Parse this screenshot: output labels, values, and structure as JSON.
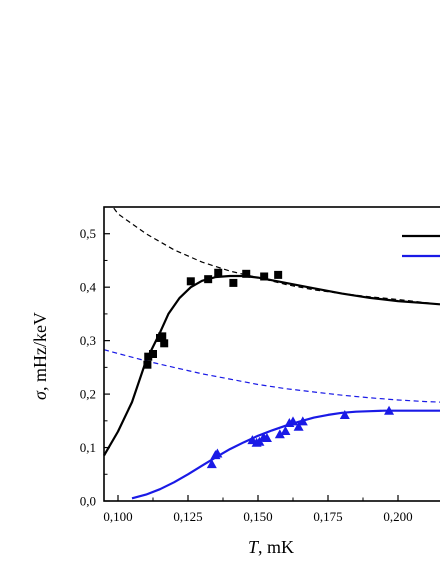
{
  "chart_data": {
    "type": "scatter",
    "xlabel_var": "T",
    "xlabel_unit": ", mK",
    "ylabel_var": "σ",
    "ylabel_unit": ", mHz/keV",
    "xlim": [
      0.095,
      0.215
    ],
    "ylim": [
      0.0,
      0.55
    ],
    "x_ticks": [
      {
        "value": 0.1,
        "label": "0,100"
      },
      {
        "value": 0.125,
        "label": "0,125"
      },
      {
        "value": 0.15,
        "label": "0,150"
      },
      {
        "value": 0.175,
        "label": "0,175"
      },
      {
        "value": 0.2,
        "label": "0,200"
      }
    ],
    "y_ticks": [
      {
        "value": 0.0,
        "label": "0,0"
      },
      {
        "value": 0.1,
        "label": "0,1"
      },
      {
        "value": 0.2,
        "label": "0,2"
      },
      {
        "value": 0.3,
        "label": "0,3"
      },
      {
        "value": 0.4,
        "label": "0,4"
      },
      {
        "value": 0.5,
        "label": "0,5"
      }
    ],
    "grid": false,
    "legend_placement": "top-right",
    "series": [
      {
        "kind": "points",
        "marker": "square",
        "color": "#000000",
        "points": [
          [
            0.1105,
            0.255
          ],
          [
            0.1108,
            0.27
          ],
          [
            0.1125,
            0.275
          ],
          [
            0.115,
            0.305
          ],
          [
            0.1158,
            0.308
          ],
          [
            0.1165,
            0.295
          ],
          [
            0.126,
            0.411
          ],
          [
            0.1322,
            0.415
          ],
          [
            0.1358,
            0.427
          ],
          [
            0.1412,
            0.408
          ],
          [
            0.1458,
            0.425
          ],
          [
            0.1522,
            0.42
          ],
          [
            0.1572,
            0.423
          ]
        ]
      },
      {
        "kind": "points",
        "marker": "triangle",
        "color": "#1a1ae6",
        "points": [
          [
            0.1335,
            0.068
          ],
          [
            0.1348,
            0.085
          ],
          [
            0.1355,
            0.088
          ],
          [
            0.148,
            0.113
          ],
          [
            0.1495,
            0.108
          ],
          [
            0.1505,
            0.11
          ],
          [
            0.152,
            0.118
          ],
          [
            0.1532,
            0.117
          ],
          [
            0.1578,
            0.124
          ],
          [
            0.1598,
            0.13
          ],
          [
            0.1612,
            0.145
          ],
          [
            0.1625,
            0.148
          ],
          [
            0.1645,
            0.138
          ],
          [
            0.166,
            0.148
          ],
          [
            0.181,
            0.16
          ],
          [
            0.1968,
            0.168
          ]
        ]
      },
      {
        "kind": "line",
        "style": "solid",
        "color": "#000000",
        "legend": true,
        "points": [
          [
            0.095,
            0.085
          ],
          [
            0.1,
            0.13
          ],
          [
            0.105,
            0.185
          ],
          [
            0.11,
            0.262
          ],
          [
            0.115,
            0.315
          ],
          [
            0.118,
            0.35
          ],
          [
            0.122,
            0.38
          ],
          [
            0.126,
            0.4
          ],
          [
            0.13,
            0.412
          ],
          [
            0.135,
            0.419
          ],
          [
            0.14,
            0.421
          ],
          [
            0.145,
            0.421
          ],
          [
            0.15,
            0.418
          ],
          [
            0.16,
            0.408
          ],
          [
            0.17,
            0.398
          ],
          [
            0.18,
            0.388
          ],
          [
            0.19,
            0.38
          ],
          [
            0.2,
            0.374
          ],
          [
            0.21,
            0.37
          ],
          [
            0.215,
            0.368
          ]
        ]
      },
      {
        "kind": "line",
        "style": "solid",
        "color": "#1a1ae6",
        "legend": true,
        "points": [
          [
            0.105,
            0.005
          ],
          [
            0.11,
            0.012
          ],
          [
            0.115,
            0.022
          ],
          [
            0.12,
            0.035
          ],
          [
            0.125,
            0.05
          ],
          [
            0.13,
            0.066
          ],
          [
            0.135,
            0.082
          ],
          [
            0.14,
            0.097
          ],
          [
            0.145,
            0.11
          ],
          [
            0.15,
            0.122
          ],
          [
            0.155,
            0.132
          ],
          [
            0.16,
            0.141
          ],
          [
            0.165,
            0.149
          ],
          [
            0.17,
            0.156
          ],
          [
            0.175,
            0.161
          ],
          [
            0.18,
            0.165
          ],
          [
            0.185,
            0.167
          ],
          [
            0.19,
            0.168
          ],
          [
            0.195,
            0.169
          ],
          [
            0.2,
            0.169
          ],
          [
            0.21,
            0.169
          ],
          [
            0.215,
            0.169
          ]
        ]
      },
      {
        "kind": "line",
        "style": "dashed",
        "color": "#000000",
        "points": [
          [
            0.0985,
            0.548
          ],
          [
            0.1,
            0.537
          ],
          [
            0.11,
            0.5
          ],
          [
            0.12,
            0.47
          ],
          [
            0.13,
            0.447
          ],
          [
            0.14,
            0.43
          ],
          [
            0.15,
            0.418
          ],
          [
            0.16,
            0.405
          ],
          [
            0.17,
            0.395
          ],
          [
            0.18,
            0.388
          ],
          [
            0.19,
            0.382
          ],
          [
            0.2,
            0.377
          ],
          [
            0.21,
            0.371
          ],
          [
            0.215,
            0.368
          ]
        ]
      },
      {
        "kind": "line",
        "style": "dashed",
        "color": "#1a1ae6",
        "points": [
          [
            0.095,
            0.283
          ],
          [
            0.1,
            0.276
          ],
          [
            0.11,
            0.262
          ],
          [
            0.12,
            0.25
          ],
          [
            0.13,
            0.238
          ],
          [
            0.14,
            0.228
          ],
          [
            0.15,
            0.218
          ],
          [
            0.16,
            0.21
          ],
          [
            0.17,
            0.204
          ],
          [
            0.18,
            0.198
          ],
          [
            0.19,
            0.193
          ],
          [
            0.2,
            0.189
          ],
          [
            0.21,
            0.186
          ],
          [
            0.215,
            0.185
          ]
        ]
      }
    ]
  }
}
